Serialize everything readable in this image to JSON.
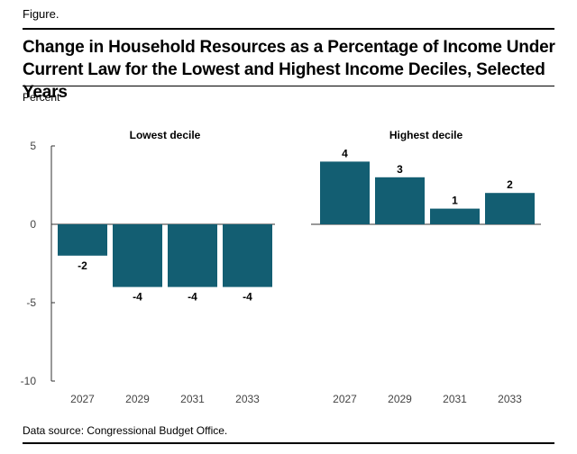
{
  "header": {
    "figure_label": "Figure.",
    "title": "Change in Household Resources as a Percentage of Income Under Current Law for the Lowest and Highest Income Deciles, Selected Years",
    "unit_label": "Percent"
  },
  "footer": {
    "source": "Data source: Congressional Budget Office."
  },
  "colors": {
    "bar": "#135e72",
    "axis": "#333333",
    "zero_line": "#333333"
  },
  "chart_data": {
    "type": "bar",
    "ylabel": "Percent",
    "ylim": [
      -10,
      5
    ],
    "yticks": [
      5,
      0,
      -5,
      -10
    ],
    "ytick_labels": [
      "5",
      "0",
      "-5",
      "-10"
    ],
    "panels": [
      {
        "title": "Lowest decile",
        "categories": [
          "2027",
          "2029",
          "2031",
          "2033"
        ],
        "values": [
          -2,
          -4,
          -4,
          -4
        ],
        "labels": [
          "-2",
          "-4",
          "-4",
          "-4"
        ]
      },
      {
        "title": "Highest decile",
        "categories": [
          "2027",
          "2029",
          "2031",
          "2033"
        ],
        "values": [
          4,
          3,
          1,
          2
        ],
        "labels": [
          "4",
          "3",
          "1",
          "2"
        ]
      }
    ]
  }
}
